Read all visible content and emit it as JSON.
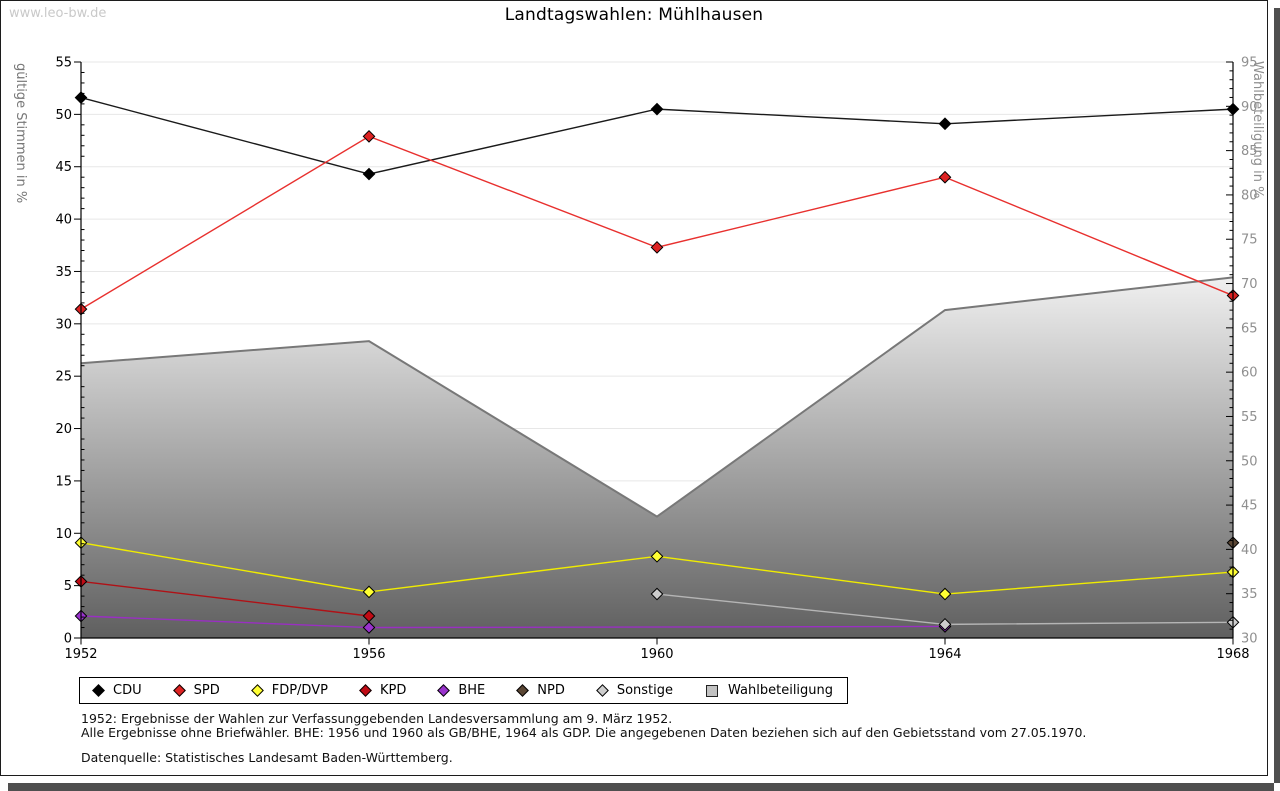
{
  "page": {
    "watermark": "www.leo-bw.de"
  },
  "title": "Landtagswahlen: Mühlhausen",
  "chart_data": {
    "type": "line",
    "title": "Landtagswahlen: Mühlhausen",
    "x": [
      1952,
      1956,
      1960,
      1964,
      1968
    ],
    "left_axis": {
      "label": "gültige Stimmen in %",
      "min": 0,
      "max": 55,
      "tick_step": 5
    },
    "right_axis": {
      "label": "Wahlbeteiligung in %",
      "min": 30,
      "max": 95,
      "tick_step": 5
    },
    "grid": true,
    "legend_position": "bottom",
    "series": [
      {
        "name": "CDU",
        "axis": "left",
        "type": "line",
        "marker": "diamond",
        "color": "#1a1a1a",
        "marker_fill": "#000000",
        "values": [
          51.6,
          44.3,
          50.5,
          49.1,
          50.5
        ]
      },
      {
        "name": "SPD",
        "axis": "left",
        "type": "line",
        "marker": "diamond",
        "color": "#e8302e",
        "marker_fill": "#dd2222",
        "values": [
          31.4,
          47.9,
          37.3,
          44.0,
          32.7
        ]
      },
      {
        "name": "FDP/DVP",
        "axis": "left",
        "type": "line",
        "marker": "diamond",
        "color": "#f0ec00",
        "marker_fill": "#ffff33",
        "values": [
          9.1,
          4.4,
          7.8,
          4.2,
          6.3
        ]
      },
      {
        "name": "KPD",
        "axis": "left",
        "type": "line",
        "marker": "diamond",
        "color": "#b01116",
        "marker_fill": "#c00b15",
        "values": [
          5.4,
          2.1,
          null,
          null,
          null
        ]
      },
      {
        "name": "BHE",
        "axis": "left",
        "type": "line",
        "marker": "diamond",
        "color": "#992fc2",
        "marker_fill": "#9933cc",
        "values": [
          2.1,
          1.0,
          null,
          1.1,
          null
        ]
      },
      {
        "name": "NPD",
        "axis": "left",
        "type": "line",
        "marker": "diamond",
        "color": "#5a4634",
        "marker_fill": "#5a4634",
        "values": [
          null,
          null,
          null,
          null,
          9.1
        ]
      },
      {
        "name": "Sonstige",
        "axis": "left",
        "type": "line",
        "marker": "diamond",
        "color": "#b5b5b5",
        "marker_fill": "#cdcdcd",
        "values": [
          null,
          null,
          4.2,
          1.3,
          1.5
        ]
      },
      {
        "name": "Wahlbeteiligung",
        "axis": "right",
        "type": "area",
        "marker": "square",
        "color": "#787878",
        "marker_fill": "#c2c2c2",
        "values": [
          61.0,
          63.5,
          43.7,
          67.0,
          70.7
        ]
      }
    ]
  },
  "footnotes": [
    "1952: Ergebnisse der Wahlen zur Verfassunggebenden Landesversammlung am 9. März 1952.",
    "Alle Ergebnisse ohne Briefwähler. BHE: 1956 und 1960 als GB/BHE, 1964 als GDP. Die angegebenen Daten beziehen sich auf den Gebietsstand vom 27.05.1970.",
    "Datenquelle: Statistisches Landesamt Baden-Württemberg."
  ]
}
